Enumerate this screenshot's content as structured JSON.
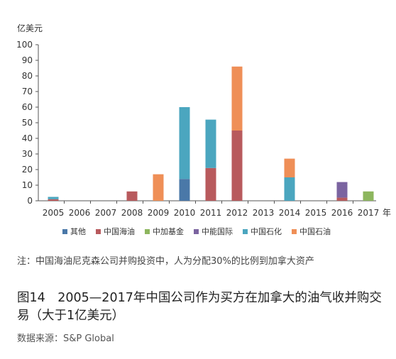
{
  "chart_data": {
    "type": "bar",
    "stacked": true,
    "unit_label": "亿美元",
    "x_suffix": "年",
    "categories": [
      "2005",
      "2006",
      "2007",
      "2008",
      "2009",
      "2010",
      "2011",
      "2012",
      "2013",
      "2014",
      "2015",
      "2016",
      "2017"
    ],
    "ylim": [
      0,
      100
    ],
    "yticks": [
      0,
      10,
      20,
      30,
      40,
      50,
      60,
      70,
      80,
      90,
      100
    ],
    "grid": false,
    "legend_position": "bottom",
    "series": [
      {
        "name": "其他",
        "color": "#4a78a8",
        "values": [
          0,
          0,
          0,
          0,
          0,
          14,
          0,
          0,
          0,
          0,
          0,
          0,
          0
        ]
      },
      {
        "name": "中国海油",
        "color": "#b85a5d",
        "values": [
          1,
          0,
          0,
          6,
          0,
          0,
          21,
          45,
          0,
          0,
          0,
          2,
          0
        ]
      },
      {
        "name": "中加基金",
        "color": "#8db65e",
        "values": [
          0,
          0,
          0,
          0,
          0,
          0,
          0,
          0,
          0,
          0,
          0,
          0,
          6
        ]
      },
      {
        "name": "中能国际",
        "color": "#7b64a0",
        "values": [
          0,
          0,
          0,
          0,
          0,
          0,
          0,
          0,
          0,
          0,
          0,
          10,
          0
        ]
      },
      {
        "name": "中国石化",
        "color": "#4ba6bf",
        "values": [
          1.5,
          0,
          0,
          0,
          0,
          46,
          31,
          0,
          0,
          15,
          0,
          0,
          0
        ]
      },
      {
        "name": "中国石油",
        "color": "#ef8f57",
        "values": [
          0,
          0,
          0,
          0,
          17,
          0,
          0,
          41,
          0,
          12,
          0,
          0,
          0
        ]
      }
    ]
  },
  "note": "注：中国海油尼克森公司并购投资中，人为分配30%的比例到加拿大资产",
  "figure_title": "图14　2005—2017年中国公司作为买方在加拿大的油气收并购交易（大于1亿美元）",
  "source": "数据来源：S&P Global"
}
